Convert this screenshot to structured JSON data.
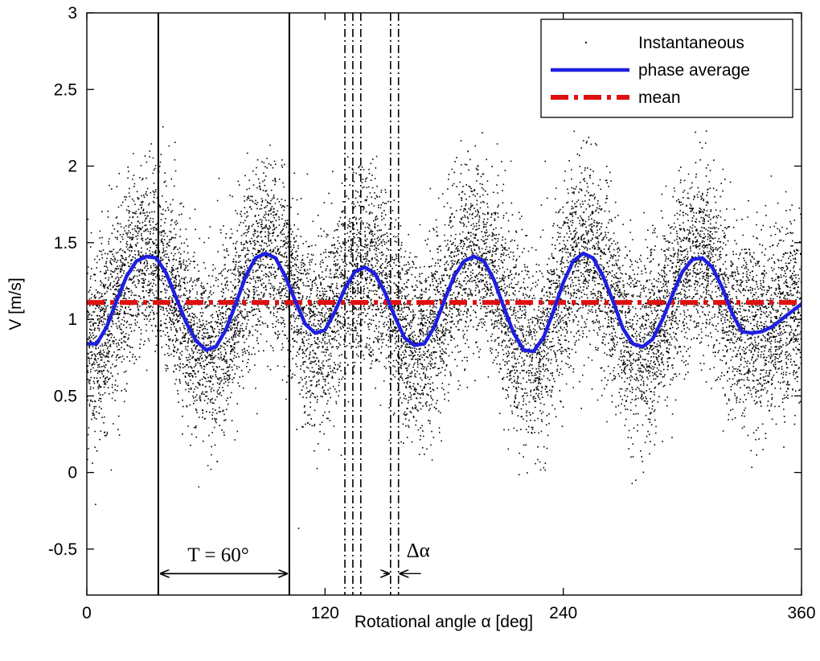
{
  "chart_data": {
    "type": "scatter",
    "xlabel": "Rotational angle α [deg]",
    "ylabel": "V [m/s]",
    "xlim": [
      0,
      360
    ],
    "ylim": [
      -0.8,
      3
    ],
    "x_ticks": [
      0,
      120,
      240,
      360
    ],
    "x_tick_labels": [
      "0",
      "120",
      "240",
      "360"
    ],
    "y_ticks": [
      -0.5,
      0,
      0.5,
      1,
      1.5,
      2,
      2.5,
      3
    ],
    "y_tick_labels": [
      "-0.5",
      "0",
      "0.5",
      "1",
      "1.5",
      "2",
      "2.5",
      "3"
    ],
    "grid": false,
    "legend": {
      "position": "top-right",
      "entries": [
        {
          "label": "Instantaneous",
          "style": "dots",
          "color": "#000000"
        },
        {
          "label": "phase average",
          "style": "solid",
          "color": "#1f1fe0"
        },
        {
          "label": "mean",
          "style": "dash-dot",
          "color": "#e01010"
        }
      ]
    },
    "series": [
      {
        "name": "phase average",
        "color": "#1f1fe0",
        "x": [
          0,
          5,
          10,
          15,
          20,
          25,
          30,
          35,
          40,
          45,
          50,
          55,
          60,
          65,
          70,
          75,
          80,
          85,
          90,
          95,
          100,
          105,
          110,
          115,
          120,
          125,
          130,
          135,
          140,
          145,
          150,
          155,
          160,
          165,
          170,
          175,
          180,
          185,
          190,
          195,
          200,
          205,
          210,
          215,
          220,
          225,
          230,
          235,
          240,
          245,
          250,
          255,
          260,
          265,
          270,
          275,
          280,
          285,
          290,
          295,
          300,
          305,
          310,
          315,
          320,
          325,
          330,
          335,
          340,
          345,
          350,
          355,
          360
        ],
        "y": [
          0.84,
          0.84,
          0.95,
          1.12,
          1.28,
          1.38,
          1.41,
          1.4,
          1.3,
          1.14,
          0.98,
          0.86,
          0.8,
          0.82,
          0.93,
          1.1,
          1.28,
          1.4,
          1.43,
          1.4,
          1.28,
          1.12,
          0.97,
          0.91,
          0.93,
          1.05,
          1.2,
          1.31,
          1.34,
          1.3,
          1.18,
          1.02,
          0.88,
          0.83,
          0.84,
          0.95,
          1.12,
          1.28,
          1.38,
          1.41,
          1.38,
          1.26,
          1.08,
          0.91,
          0.8,
          0.79,
          0.88,
          1.05,
          1.24,
          1.38,
          1.43,
          1.4,
          1.28,
          1.12,
          0.94,
          0.84,
          0.82,
          0.87,
          1.0,
          1.16,
          1.31,
          1.39,
          1.4,
          1.34,
          1.21,
          1.04,
          0.92,
          0.91,
          0.92,
          0.95,
          1.0,
          1.05,
          1.1
        ]
      },
      {
        "name": "mean",
        "color": "#e01010",
        "x": [
          0,
          360
        ],
        "y": [
          1.11,
          1.11
        ]
      },
      {
        "name": "Instantaneous",
        "color": "#000000",
        "description_values": "dense cloud of points around the phase average, spread roughly ±0.6 m/s, extremes about -0.2 to 2.7"
      }
    ],
    "vertical_lines": {
      "solid_x": [
        36,
        102
      ],
      "dashdot_x": [
        130,
        134,
        138,
        153,
        157
      ]
    },
    "annotations": [
      {
        "text": "T = 60°",
        "x": 65,
        "y": -0.58,
        "arrow_from": 36,
        "arrow_to": 102
      },
      {
        "text": "Δα",
        "x": 161,
        "y": -0.55
      }
    ]
  }
}
